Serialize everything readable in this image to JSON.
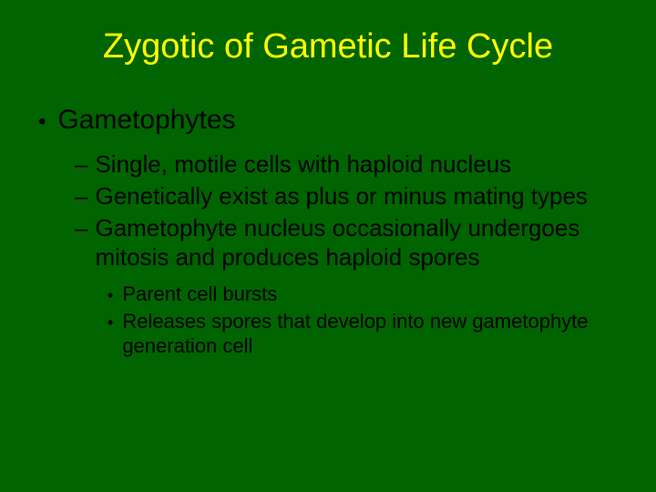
{
  "slide": {
    "background_color": "#006400",
    "title": {
      "text": "Zygotic of Gametic Life Cycle",
      "color": "#ffff00",
      "fontsize": 38
    },
    "text_color": "#000000",
    "level1": {
      "bullet": "•",
      "text": "Gametophytes",
      "fontsize": 30
    },
    "level2_items": [
      {
        "dash": "–",
        "text": "Single, motile cells with haploid nucleus"
      },
      {
        "dash": "–",
        "text": "Genetically exist as plus or minus mating types"
      },
      {
        "dash": "–",
        "text": "Gametophyte nucleus occasionally undergoes mitosis and produces haploid spores"
      }
    ],
    "level2_fontsize": 26,
    "level3_items": [
      {
        "bullet": "•",
        "text": "Parent cell bursts"
      },
      {
        "bullet": "•",
        "text": "Releases spores that develop into new gametophyte generation cell"
      }
    ],
    "level3_fontsize": 22
  }
}
